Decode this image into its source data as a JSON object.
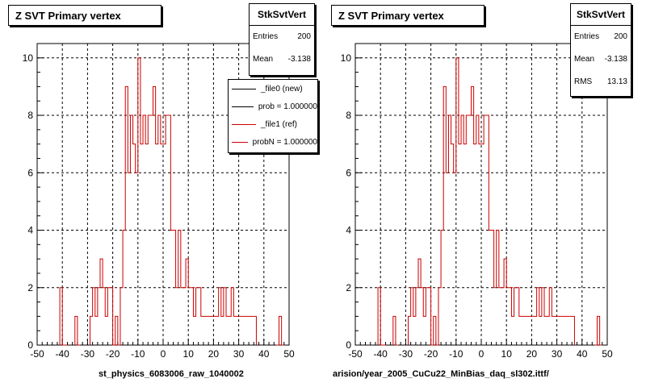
{
  "footer_text": "",
  "chart_data": [
    {
      "type": "step",
      "title": "Z SVT Primary vertex",
      "xlabel": "st_physics_6083006_raw_1040002",
      "ylabel": "",
      "xlim": [
        -50,
        50
      ],
      "ylim": [
        0,
        10.5
      ],
      "xticks": [
        -50,
        -40,
        -30,
        -20,
        -10,
        0,
        10,
        20,
        30,
        40,
        50
      ],
      "yticks": [
        0,
        2,
        4,
        6,
        8,
        10
      ],
      "grid": true,
      "bin_width": 1,
      "stats": {
        "name": "StkSvtVert",
        "entries_label": "Entries",
        "entries": "200",
        "mean_label": "Mean",
        "mean": "-3.138"
      },
      "legend": [
        {
          "label": "_file0 (new)",
          "color": "#000000"
        },
        {
          "label": "prob = 1.000000",
          "color": "#000000"
        },
        {
          "label": "_file1 (ref)",
          "color": "#cc0000"
        },
        {
          "label": "probN = 1.000000",
          "color": "#cc0000"
        }
      ],
      "series": [
        {
          "color": "#cc0000",
          "x": [
            -41,
            -40,
            -39,
            -35,
            -34,
            -29,
            -28,
            -27,
            -26,
            -25,
            -24,
            -23,
            -22,
            -21,
            -20,
            -19,
            -18,
            -17,
            -16,
            -15,
            -14,
            -13,
            -12,
            -11,
            -10,
            -9,
            -8,
            -7,
            -6,
            -5,
            -4,
            -3,
            -2,
            -1,
            0,
            1,
            2,
            3,
            4,
            5,
            6,
            7,
            8,
            9,
            10,
            11,
            12,
            13,
            14,
            15,
            16,
            17,
            18,
            19,
            20,
            21,
            22,
            23,
            24,
            25,
            26,
            27,
            28,
            29,
            30,
            31,
            32,
            33,
            34,
            35,
            36,
            45,
            46,
            47
          ],
          "y": [
            2,
            0,
            0,
            1,
            0,
            1,
            2,
            1,
            2,
            3,
            2,
            1,
            2,
            2,
            0,
            1,
            0,
            2,
            4,
            9,
            6,
            8,
            7,
            6,
            10,
            7,
            8,
            7,
            8,
            8,
            9,
            7,
            8,
            7,
            7,
            8,
            8,
            4,
            4,
            2,
            4,
            2,
            2,
            3,
            2,
            2,
            1,
            2,
            2,
            1,
            1,
            1,
            1,
            1,
            1,
            1,
            2,
            1,
            2,
            1,
            1,
            2,
            1,
            1,
            1,
            1,
            1,
            1,
            1,
            1,
            1,
            0,
            1,
            0
          ]
        }
      ]
    },
    {
      "type": "step",
      "title": "Z SVT Primary vertex",
      "xlabel": "arision/year_2005_CuCu22_MinBias_daq_sl302.ittf/",
      "ylabel": "",
      "xlim": [
        -50,
        50
      ],
      "ylim": [
        0,
        10.5
      ],
      "xticks": [
        -50,
        -40,
        -30,
        -20,
        -10,
        0,
        10,
        20,
        30,
        40,
        50
      ],
      "yticks": [
        0,
        2,
        4,
        6,
        8,
        10
      ],
      "grid": true,
      "bin_width": 1,
      "stats": {
        "name": "StkSvtVert",
        "entries_label": "Entries",
        "entries": "200",
        "mean_label": "Mean",
        "mean": "-3.138",
        "rms_label": "RMS",
        "rms": "13.13"
      },
      "legend": [],
      "series": [
        {
          "color": "#cc0000",
          "x": [
            -41,
            -40,
            -39,
            -35,
            -34,
            -29,
            -28,
            -27,
            -26,
            -25,
            -24,
            -23,
            -22,
            -21,
            -20,
            -19,
            -18,
            -17,
            -16,
            -15,
            -14,
            -13,
            -12,
            -11,
            -10,
            -9,
            -8,
            -7,
            -6,
            -5,
            -4,
            -3,
            -2,
            -1,
            0,
            1,
            2,
            3,
            4,
            5,
            6,
            7,
            8,
            9,
            10,
            11,
            12,
            13,
            14,
            15,
            16,
            17,
            18,
            19,
            20,
            21,
            22,
            23,
            24,
            25,
            26,
            27,
            28,
            29,
            30,
            31,
            32,
            33,
            34,
            35,
            36,
            45,
            46,
            47
          ],
          "y": [
            2,
            0,
            0,
            1,
            0,
            1,
            2,
            1,
            2,
            3,
            2,
            1,
            2,
            2,
            0,
            1,
            0,
            2,
            4,
            9,
            6,
            8,
            7,
            6,
            10,
            7,
            8,
            7,
            8,
            8,
            9,
            7,
            8,
            7,
            7,
            8,
            8,
            4,
            4,
            2,
            4,
            2,
            2,
            3,
            2,
            2,
            1,
            2,
            2,
            1,
            1,
            1,
            1,
            1,
            1,
            1,
            2,
            1,
            2,
            1,
            1,
            2,
            1,
            1,
            1,
            1,
            1,
            1,
            1,
            1,
            1,
            0,
            1,
            0
          ]
        }
      ]
    }
  ]
}
